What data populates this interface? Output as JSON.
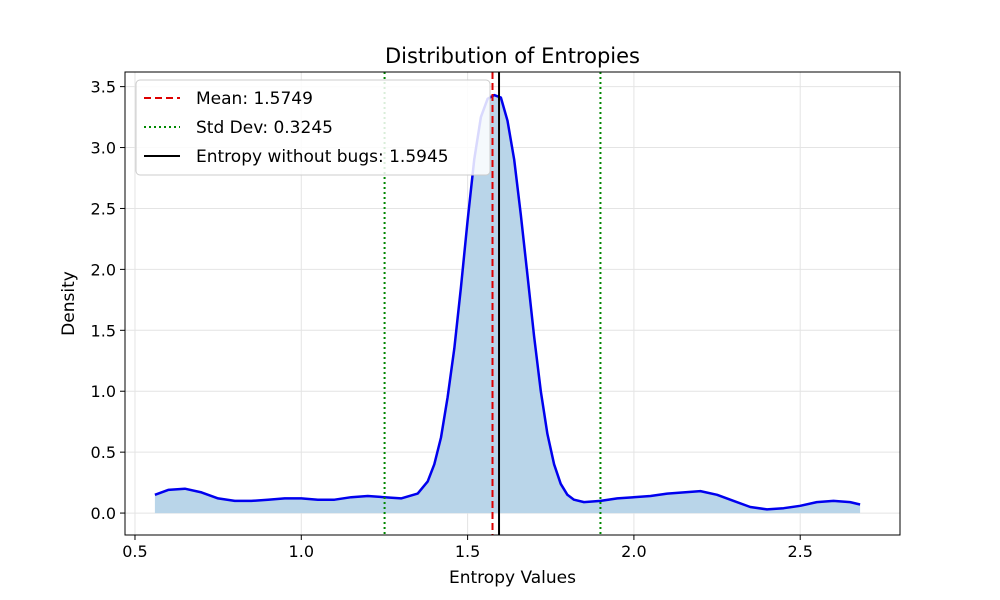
{
  "chart_data": {
    "type": "area",
    "title": "Distribution of Entropies",
    "xlabel": "Entropy Values",
    "ylabel": "Density",
    "xlim": [
      0.47,
      2.8
    ],
    "ylim": [
      -0.18,
      3.62
    ],
    "xticks": [
      0.5,
      1.0,
      1.5,
      2.0,
      2.5
    ],
    "xtick_labels": [
      "0.5",
      "1.0",
      "1.5",
      "2.0",
      "2.5"
    ],
    "yticks": [
      0.0,
      0.5,
      1.0,
      1.5,
      2.0,
      2.5,
      3.0,
      3.5
    ],
    "ytick_labels": [
      "0.0",
      "0.5",
      "1.0",
      "1.5",
      "2.0",
      "2.5",
      "3.0",
      "3.5"
    ],
    "grid": true,
    "legend_position": "top-left",
    "series": [
      {
        "type": "kde",
        "color": "#0000ee",
        "fill_color": "#b9d5e9",
        "x": [
          0.56,
          0.6,
          0.65,
          0.7,
          0.75,
          0.8,
          0.85,
          0.9,
          0.95,
          1.0,
          1.05,
          1.1,
          1.15,
          1.2,
          1.25,
          1.3,
          1.35,
          1.38,
          1.4,
          1.42,
          1.44,
          1.46,
          1.48,
          1.5,
          1.52,
          1.54,
          1.56,
          1.58,
          1.6,
          1.62,
          1.64,
          1.66,
          1.68,
          1.7,
          1.72,
          1.74,
          1.76,
          1.78,
          1.8,
          1.82,
          1.85,
          1.9,
          1.95,
          2.0,
          2.05,
          2.1,
          2.15,
          2.2,
          2.25,
          2.3,
          2.35,
          2.4,
          2.45,
          2.5,
          2.55,
          2.6,
          2.65,
          2.68
        ],
        "y": [
          0.15,
          0.19,
          0.2,
          0.17,
          0.12,
          0.1,
          0.1,
          0.11,
          0.12,
          0.12,
          0.11,
          0.11,
          0.13,
          0.14,
          0.13,
          0.12,
          0.16,
          0.26,
          0.4,
          0.62,
          0.95,
          1.35,
          1.85,
          2.4,
          2.9,
          3.25,
          3.4,
          3.43,
          3.41,
          3.22,
          2.9,
          2.45,
          1.95,
          1.45,
          1.0,
          0.65,
          0.4,
          0.24,
          0.15,
          0.11,
          0.09,
          0.1,
          0.12,
          0.13,
          0.14,
          0.16,
          0.17,
          0.18,
          0.15,
          0.1,
          0.05,
          0.03,
          0.04,
          0.06,
          0.09,
          0.1,
          0.09,
          0.07
        ]
      }
    ],
    "vlines": [
      {
        "label": "Mean: 1.5749",
        "x": 1.5749,
        "color": "#dd0000",
        "style": "dashed"
      },
      {
        "label": "Std Dev: 0.3245",
        "x": 1.2504,
        "color": "#008800",
        "style": "dotted"
      },
      {
        "label": "",
        "x": 1.8994,
        "color": "#008800",
        "style": "dotted"
      },
      {
        "label": "Entropy without bugs: 1.5945",
        "x": 1.5945,
        "color": "#000000",
        "style": "solid"
      }
    ],
    "legend": [
      {
        "label": "Mean: 1.5749",
        "color": "#dd0000",
        "style": "dashed"
      },
      {
        "label": "Std Dev: 0.3245",
        "color": "#008800",
        "style": "dotted"
      },
      {
        "label": "Entropy without bugs: 1.5945",
        "color": "#000000",
        "style": "solid"
      }
    ]
  }
}
